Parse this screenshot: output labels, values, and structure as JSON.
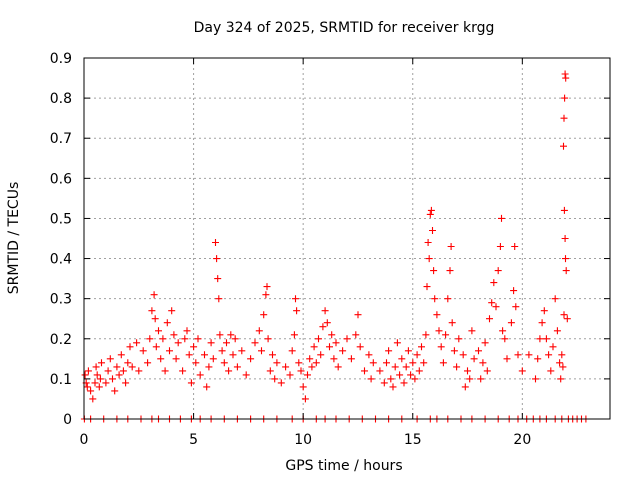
{
  "chart_data": {
    "type": "scatter",
    "title": "Day 324 of 2025, SRMTID for receiver krgg",
    "xlabel": "GPS time / hours",
    "ylabel": "SRMTID / TECUs",
    "xlim": [
      0,
      24
    ],
    "ylim": [
      0,
      0.9
    ],
    "xticks": [
      0,
      5,
      10,
      15,
      20
    ],
    "yticks": [
      0,
      0.1,
      0.2,
      0.3,
      0.4,
      0.5,
      0.6,
      0.7,
      0.8,
      0.9
    ],
    "xtick_labels": [
      "0",
      "5",
      "10",
      "15",
      "20"
    ],
    "ytick_labels": [
      "0",
      "0.1",
      "0.2",
      "0.3",
      "0.4",
      "0.5",
      "0.6",
      "0.7",
      "0.8",
      "0.9"
    ],
    "grid": true,
    "marker": "plus",
    "color": "#ff0000",
    "series": [
      {
        "name": "SRMTID",
        "points": [
          [
            0.05,
            0.11
          ],
          [
            0.1,
            0.09
          ],
          [
            0.15,
            0.08
          ],
          [
            0.2,
            0.12
          ],
          [
            0.3,
            0.07
          ],
          [
            0.4,
            0.05
          ],
          [
            0.5,
            0.09
          ],
          [
            0.55,
            0.13
          ],
          [
            0.6,
            0.11
          ],
          [
            0.7,
            0.08
          ],
          [
            0.75,
            0.1
          ],
          [
            0.8,
            0.14
          ],
          [
            1.0,
            0.09
          ],
          [
            1.1,
            0.12
          ],
          [
            1.2,
            0.15
          ],
          [
            1.3,
            0.1
          ],
          [
            1.4,
            0.07
          ],
          [
            1.5,
            0.13
          ],
          [
            1.6,
            0.11
          ],
          [
            1.7,
            0.16
          ],
          [
            1.8,
            0.12
          ],
          [
            1.9,
            0.09
          ],
          [
            2.0,
            0.14
          ],
          [
            2.1,
            0.18
          ],
          [
            2.2,
            0.13
          ],
          [
            2.4,
            0.19
          ],
          [
            2.5,
            0.12
          ],
          [
            2.7,
            0.17
          ],
          [
            2.9,
            0.14
          ],
          [
            3.0,
            0.2
          ],
          [
            3.1,
            0.27
          ],
          [
            3.2,
            0.31
          ],
          [
            3.25,
            0.25
          ],
          [
            3.3,
            0.18
          ],
          [
            3.4,
            0.22
          ],
          [
            3.5,
            0.15
          ],
          [
            3.6,
            0.2
          ],
          [
            3.7,
            0.12
          ],
          [
            3.8,
            0.24
          ],
          [
            3.9,
            0.17
          ],
          [
            4.0,
            0.27
          ],
          [
            4.1,
            0.21
          ],
          [
            4.2,
            0.15
          ],
          [
            4.3,
            0.19
          ],
          [
            4.5,
            0.12
          ],
          [
            4.6,
            0.2
          ],
          [
            4.7,
            0.22
          ],
          [
            4.8,
            0.16
          ],
          [
            4.9,
            0.09
          ],
          [
            5.0,
            0.18
          ],
          [
            5.1,
            0.14
          ],
          [
            5.2,
            0.2
          ],
          [
            5.3,
            0.11
          ],
          [
            5.5,
            0.16
          ],
          [
            5.6,
            0.08
          ],
          [
            5.7,
            0.13
          ],
          [
            5.8,
            0.19
          ],
          [
            5.9,
            0.15
          ],
          [
            6.0,
            0.44
          ],
          [
            6.05,
            0.4
          ],
          [
            6.1,
            0.35
          ],
          [
            6.15,
            0.3
          ],
          [
            6.2,
            0.21
          ],
          [
            6.3,
            0.17
          ],
          [
            6.4,
            0.14
          ],
          [
            6.5,
            0.19
          ],
          [
            6.6,
            0.12
          ],
          [
            6.7,
            0.21
          ],
          [
            6.8,
            0.16
          ],
          [
            6.9,
            0.2
          ],
          [
            7.0,
            0.13
          ],
          [
            7.2,
            0.17
          ],
          [
            7.4,
            0.11
          ],
          [
            7.6,
            0.15
          ],
          [
            7.8,
            0.19
          ],
          [
            8.0,
            0.22
          ],
          [
            8.1,
            0.17
          ],
          [
            8.2,
            0.26
          ],
          [
            8.3,
            0.31
          ],
          [
            8.35,
            0.33
          ],
          [
            8.4,
            0.2
          ],
          [
            8.5,
            0.12
          ],
          [
            8.6,
            0.16
          ],
          [
            8.7,
            0.1
          ],
          [
            8.8,
            0.14
          ],
          [
            9.0,
            0.09
          ],
          [
            9.2,
            0.13
          ],
          [
            9.4,
            0.11
          ],
          [
            9.5,
            0.17
          ],
          [
            9.6,
            0.21
          ],
          [
            9.65,
            0.3
          ],
          [
            9.7,
            0.27
          ],
          [
            9.8,
            0.14
          ],
          [
            9.9,
            0.12
          ],
          [
            10.0,
            0.08
          ],
          [
            10.1,
            0.05
          ],
          [
            10.2,
            0.11
          ],
          [
            10.3,
            0.15
          ],
          [
            10.4,
            0.13
          ],
          [
            10.5,
            0.18
          ],
          [
            10.6,
            0.14
          ],
          [
            10.7,
            0.2
          ],
          [
            10.8,
            0.16
          ],
          [
            10.9,
            0.23
          ],
          [
            11.0,
            0.27
          ],
          [
            11.1,
            0.24
          ],
          [
            11.2,
            0.18
          ],
          [
            11.3,
            0.21
          ],
          [
            11.4,
            0.15
          ],
          [
            11.5,
            0.19
          ],
          [
            11.6,
            0.13
          ],
          [
            11.8,
            0.17
          ],
          [
            12.0,
            0.2
          ],
          [
            12.2,
            0.15
          ],
          [
            12.4,
            0.21
          ],
          [
            12.5,
            0.26
          ],
          [
            12.6,
            0.18
          ],
          [
            12.8,
            0.12
          ],
          [
            13.0,
            0.16
          ],
          [
            13.1,
            0.1
          ],
          [
            13.2,
            0.14
          ],
          [
            13.5,
            0.12
          ],
          [
            13.7,
            0.09
          ],
          [
            13.8,
            0.14
          ],
          [
            13.9,
            0.17
          ],
          [
            14.0,
            0.1
          ],
          [
            14.1,
            0.08
          ],
          [
            14.2,
            0.13
          ],
          [
            14.3,
            0.19
          ],
          [
            14.4,
            0.11
          ],
          [
            14.5,
            0.15
          ],
          [
            14.6,
            0.09
          ],
          [
            14.7,
            0.13
          ],
          [
            14.8,
            0.17
          ],
          [
            14.9,
            0.11
          ],
          [
            15.0,
            0.14
          ],
          [
            15.1,
            0.1
          ],
          [
            15.2,
            0.16
          ],
          [
            15.3,
            0.12
          ],
          [
            15.4,
            0.18
          ],
          [
            15.5,
            0.14
          ],
          [
            15.6,
            0.21
          ],
          [
            15.65,
            0.33
          ],
          [
            15.7,
            0.44
          ],
          [
            15.75,
            0.4
          ],
          [
            15.8,
            0.51
          ],
          [
            15.85,
            0.52
          ],
          [
            15.9,
            0.47
          ],
          [
            15.95,
            0.37
          ],
          [
            16.0,
            0.3
          ],
          [
            16.1,
            0.26
          ],
          [
            16.2,
            0.22
          ],
          [
            16.3,
            0.18
          ],
          [
            16.4,
            0.14
          ],
          [
            16.5,
            0.21
          ],
          [
            16.6,
            0.3
          ],
          [
            16.7,
            0.37
          ],
          [
            16.75,
            0.43
          ],
          [
            16.8,
            0.24
          ],
          [
            16.9,
            0.17
          ],
          [
            17.0,
            0.13
          ],
          [
            17.1,
            0.2
          ],
          [
            17.3,
            0.16
          ],
          [
            17.4,
            0.08
          ],
          [
            17.5,
            0.12
          ],
          [
            17.6,
            0.1
          ],
          [
            17.7,
            0.22
          ],
          [
            17.8,
            0.15
          ],
          [
            18.0,
            0.17
          ],
          [
            18.1,
            0.1
          ],
          [
            18.2,
            0.14
          ],
          [
            18.3,
            0.19
          ],
          [
            18.4,
            0.12
          ],
          [
            18.5,
            0.25
          ],
          [
            18.6,
            0.29
          ],
          [
            18.7,
            0.34
          ],
          [
            18.8,
            0.28
          ],
          [
            18.9,
            0.37
          ],
          [
            19.0,
            0.43
          ],
          [
            19.05,
            0.5
          ],
          [
            19.1,
            0.22
          ],
          [
            19.2,
            0.2
          ],
          [
            19.3,
            0.15
          ],
          [
            19.5,
            0.24
          ],
          [
            19.6,
            0.32
          ],
          [
            19.65,
            0.43
          ],
          [
            19.7,
            0.28
          ],
          [
            19.8,
            0.16
          ],
          [
            20.0,
            0.12
          ],
          [
            20.3,
            0.16
          ],
          [
            20.6,
            0.1
          ],
          [
            20.7,
            0.15
          ],
          [
            20.8,
            0.2
          ],
          [
            20.9,
            0.24
          ],
          [
            21.0,
            0.27
          ],
          [
            21.1,
            0.2
          ],
          [
            21.2,
            0.16
          ],
          [
            21.3,
            0.12
          ],
          [
            21.4,
            0.18
          ],
          [
            21.5,
            0.3
          ],
          [
            21.6,
            0.22
          ],
          [
            21.7,
            0.14
          ],
          [
            21.75,
            0.1
          ],
          [
            21.8,
            0.16
          ],
          [
            21.85,
            0.13
          ],
          [
            21.9,
            0.26
          ],
          [
            21.92,
            0.52
          ],
          [
            21.95,
            0.45
          ],
          [
            21.97,
            0.4
          ],
          [
            22.0,
            0.37
          ],
          [
            22.05,
            0.25
          ],
          [
            21.88,
            0.68
          ],
          [
            21.9,
            0.75
          ],
          [
            21.93,
            0.8
          ],
          [
            21.95,
            0.86
          ],
          [
            21.98,
            0.85
          ],
          [
            0.02,
            0
          ],
          [
            0.3,
            0
          ],
          [
            0.9,
            0
          ],
          [
            1.5,
            0
          ],
          [
            2.0,
            0
          ],
          [
            2.6,
            0
          ],
          [
            3.1,
            0
          ],
          [
            3.4,
            0
          ],
          [
            3.9,
            0
          ],
          [
            4.4,
            0
          ],
          [
            4.9,
            0
          ],
          [
            5.3,
            0
          ],
          [
            5.8,
            0
          ],
          [
            6.4,
            0
          ],
          [
            7.0,
            0
          ],
          [
            7.6,
            0
          ],
          [
            8.2,
            0
          ],
          [
            8.8,
            0
          ],
          [
            9.5,
            0
          ],
          [
            10.0,
            0
          ],
          [
            10.6,
            0
          ],
          [
            11.0,
            0
          ],
          [
            11.5,
            0
          ],
          [
            12.1,
            0
          ],
          [
            12.7,
            0
          ],
          [
            13.3,
            0
          ],
          [
            13.9,
            0
          ],
          [
            14.5,
            0
          ],
          [
            15.2,
            0
          ],
          [
            15.8,
            0
          ],
          [
            16.1,
            0
          ],
          [
            16.6,
            0
          ],
          [
            17.2,
            0
          ],
          [
            17.7,
            0
          ],
          [
            18.3,
            0
          ],
          [
            18.9,
            0
          ],
          [
            19.4,
            0
          ],
          [
            19.8,
            0
          ],
          [
            20.2,
            0
          ],
          [
            20.5,
            0
          ],
          [
            20.8,
            0
          ],
          [
            21.1,
            0
          ],
          [
            21.5,
            0
          ],
          [
            21.8,
            0
          ],
          [
            22.1,
            0
          ],
          [
            22.3,
            0
          ],
          [
            22.5,
            0
          ],
          [
            22.7,
            0
          ],
          [
            22.9,
            0
          ]
        ]
      }
    ]
  }
}
